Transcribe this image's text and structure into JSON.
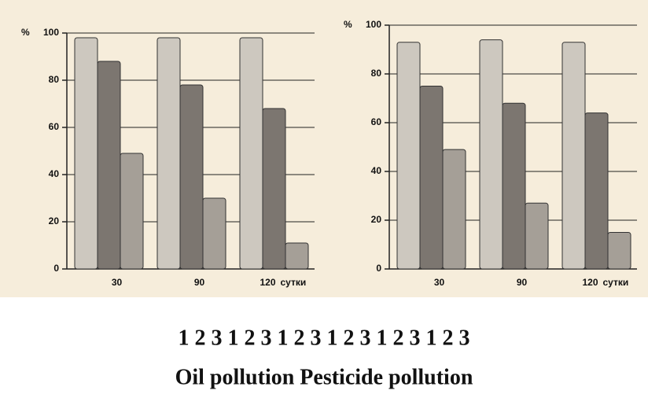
{
  "chart_data": [
    {
      "type": "bar",
      "ylabel": "%",
      "xlabel": "сутки",
      "categories": [
        "30",
        "90",
        "120"
      ],
      "series": [
        {
          "color": "#cdc8bf",
          "values": [
            98,
            98,
            98
          ]
        },
        {
          "color": "#7c7670",
          "values": [
            88,
            78,
            68
          ]
        },
        {
          "color": "#a59f97",
          "values": [
            49,
            30,
            11
          ]
        }
      ],
      "ylim": [
        0,
        100
      ],
      "yticks": [
        0,
        20,
        40,
        60,
        80,
        100
      ],
      "grid": true
    },
    {
      "type": "bar",
      "ylabel": "%",
      "xlabel": "сутки",
      "categories": [
        "30",
        "90",
        "120"
      ],
      "series": [
        {
          "color": "#cdc8bf",
          "values": [
            93,
            94,
            93
          ]
        },
        {
          "color": "#7c7670",
          "values": [
            75,
            68,
            64
          ]
        },
        {
          "color": "#a59f97",
          "values": [
            49,
            27,
            15
          ]
        }
      ],
      "ylim": [
        0,
        100
      ],
      "yticks": [
        0,
        20,
        40,
        60,
        80,
        100
      ],
      "grid": true
    }
  ],
  "caption_numbers": "1 2 3 1 2 3 1 2 3 1 2 3 1 2 3 1 2 3",
  "caption_labels": "Oil pollution Pesticide pollution"
}
